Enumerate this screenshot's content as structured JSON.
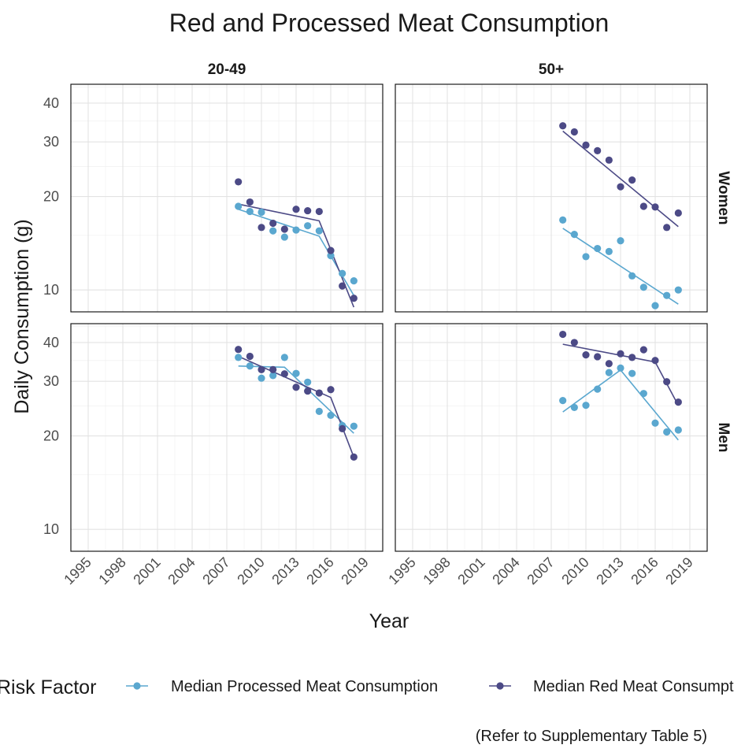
{
  "chart_data": {
    "type": "scatter",
    "title": "Red and Processed Meat Consumption",
    "xlabel": "Year",
    "ylabel": "Daily Consumption (g)",
    "y_scale": "log",
    "xlim": [
      1993.5,
      2020.5
    ],
    "ylim": [
      8.5,
      46
    ],
    "x_ticks": [
      "1995",
      "1998",
      "2001",
      "2004",
      "2007",
      "2010",
      "2013",
      "2016",
      "2019"
    ],
    "y_ticks": [
      "10",
      "20",
      "30",
      "40"
    ],
    "columns": [
      "20-49",
      "50+"
    ],
    "rows": [
      "Women",
      "Men"
    ],
    "grid": true,
    "legend": {
      "title": "Risk Factor",
      "position": "bottom",
      "entries": [
        "Median Processed Meat Consumption",
        "Median Red Meat Consumpt"
      ]
    },
    "colors": {
      "processed": "#5aa7cf",
      "red": "#4c4a86"
    },
    "caption": "(Refer to Supplementary Table 5)",
    "panels": [
      {
        "col": "20-49",
        "row": "Women",
        "processed": {
          "points": [
            [
              2008,
              18.6
            ],
            [
              2009,
              17.9
            ],
            [
              2010,
              17.8
            ],
            [
              2011,
              15.5
            ],
            [
              2012,
              14.8
            ],
            [
              2013,
              15.6
            ],
            [
              2014,
              16.1
            ],
            [
              2015,
              15.5
            ],
            [
              2016,
              12.9
            ],
            [
              2017,
              11.3
            ],
            [
              2018,
              10.7
            ]
          ],
          "fit": [
            [
              2008,
              18.2
            ],
            [
              2015,
              14.9
            ],
            [
              2018,
              9.6
            ]
          ]
        },
        "red": {
          "points": [
            [
              2008,
              22.3
            ],
            [
              2009,
              19.2
            ],
            [
              2010,
              15.9
            ],
            [
              2011,
              16.4
            ],
            [
              2012,
              15.7
            ],
            [
              2013,
              18.2
            ],
            [
              2014,
              18.0
            ],
            [
              2015,
              17.9
            ],
            [
              2016,
              13.4
            ],
            [
              2017,
              10.3
            ],
            [
              2018,
              9.4
            ]
          ],
          "fit": [
            [
              2008,
              18.9
            ],
            [
              2015,
              16.7
            ],
            [
              2018,
              8.8
            ]
          ]
        }
      },
      {
        "col": "50+",
        "row": "Women",
        "processed": {
          "points": [
            [
              2008,
              16.8
            ],
            [
              2009,
              15.1
            ],
            [
              2010,
              12.8
            ],
            [
              2011,
              13.6
            ],
            [
              2012,
              13.3
            ],
            [
              2013,
              14.4
            ],
            [
              2014,
              11.1
            ],
            [
              2015,
              10.2
            ],
            [
              2016,
              8.9
            ],
            [
              2017,
              9.6
            ],
            [
              2018,
              10.0
            ]
          ],
          "fit": [
            [
              2008,
              15.8
            ],
            [
              2018,
              9.0
            ]
          ]
        },
        "red": {
          "points": [
            [
              2008,
              33.8
            ],
            [
              2009,
              32.3
            ],
            [
              2010,
              29.3
            ],
            [
              2011,
              28.1
            ],
            [
              2012,
              26.2
            ],
            [
              2013,
              21.5
            ],
            [
              2014,
              22.6
            ],
            [
              2015,
              18.6
            ],
            [
              2016,
              18.5
            ],
            [
              2017,
              15.9
            ],
            [
              2018,
              17.7
            ]
          ],
          "fit": [
            [
              2008,
              32.5
            ],
            [
              2018,
              16.0
            ]
          ]
        }
      },
      {
        "col": "20-49",
        "row": "Men",
        "processed": {
          "points": [
            [
              2008,
              35.8
            ],
            [
              2009,
              33.6
            ],
            [
              2010,
              30.7
            ],
            [
              2011,
              31.3
            ],
            [
              2012,
              35.8
            ],
            [
              2013,
              31.8
            ],
            [
              2014,
              29.8
            ],
            [
              2015,
              24.0
            ],
            [
              2016,
              23.3
            ],
            [
              2017,
              21.6
            ],
            [
              2018,
              21.5
            ]
          ],
          "fit": [
            [
              2008,
              33.6
            ],
            [
              2012,
              33.3
            ],
            [
              2018,
              20.4
            ]
          ]
        },
        "red": {
          "points": [
            [
              2008,
              38.0
            ],
            [
              2009,
              36.1
            ],
            [
              2010,
              32.7
            ],
            [
              2011,
              32.7
            ],
            [
              2012,
              31.7
            ],
            [
              2013,
              28.7
            ],
            [
              2014,
              27.9
            ],
            [
              2015,
              27.5
            ],
            [
              2016,
              28.2
            ],
            [
              2017,
              21.1
            ],
            [
              2018,
              17.1
            ]
          ],
          "fit": [
            [
              2008,
              36.1
            ],
            [
              2016,
              26.6
            ],
            [
              2018,
              17.1
            ]
          ]
        }
      },
      {
        "col": "50+",
        "row": "Men",
        "processed": {
          "points": [
            [
              2008,
              26.0
            ],
            [
              2009,
              24.7
            ],
            [
              2010,
              25.1
            ],
            [
              2011,
              28.3
            ],
            [
              2012,
              32.0
            ],
            [
              2013,
              33.1
            ],
            [
              2014,
              31.8
            ],
            [
              2015,
              27.4
            ],
            [
              2016,
              22.0
            ],
            [
              2017,
              20.6
            ],
            [
              2018,
              20.9
            ]
          ],
          "fit": [
            [
              2008,
              23.9
            ],
            [
              2013,
              32.6
            ],
            [
              2018,
              19.4
            ]
          ]
        },
        "red": {
          "points": [
            [
              2008,
              42.5
            ],
            [
              2009,
              40.0
            ],
            [
              2010,
              36.5
            ],
            [
              2011,
              36.0
            ],
            [
              2012,
              34.2
            ],
            [
              2013,
              36.8
            ],
            [
              2014,
              35.8
            ],
            [
              2015,
              37.9
            ],
            [
              2016,
              35.0
            ],
            [
              2017,
              29.9
            ],
            [
              2018,
              25.7
            ]
          ],
          "fit": [
            [
              2008,
              39.5
            ],
            [
              2016,
              34.6
            ],
            [
              2018,
              25.1
            ]
          ]
        }
      }
    ]
  }
}
